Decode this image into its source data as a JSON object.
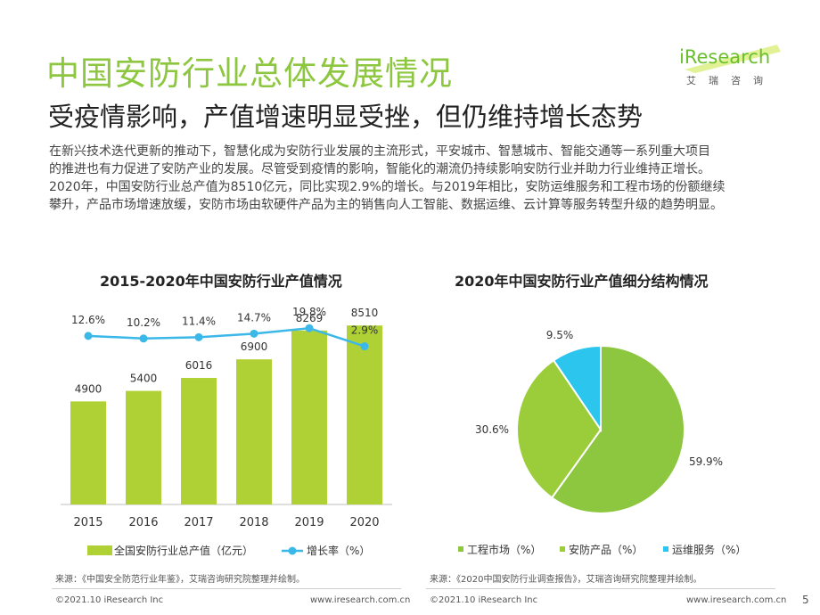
{
  "header": {
    "title": "中国安防行业总体发展情况",
    "subtitle": "受疫情影响，产值增速明显受挫，但仍维持增长态势",
    "logo_text": "iResearch",
    "logo_sub": "艾瑞咨询"
  },
  "body_lines": [
    "在新兴技术迭代更新的推动下，智慧化成为安防行业发展的主流形式，平安城市、智慧城市、智能交通等一系列重大项目",
    "的推进也有力促进了安防产业的发展。尽管受到疫情的影响，智能化的潮流仍持续影响安防行业并助力行业维持正增长。",
    "2020年，中国安防行业总产值为8510亿元，同比实现2.9%的增长。与2019年相比，安防运维服务和工程市场的份额继续",
    "攀升，产品市场增速放缓，安防市场由软硬件产品为主的销售向人工智能、数据运维、云计算等服务转型升级的趋势明显。"
  ],
  "colors": {
    "accent": "#8dc63f",
    "bar": "#afd136",
    "line": "#3bb8e8",
    "pie_engineering": "#8dc63f",
    "pie_product": "#9bcc3a",
    "pie_service": "#2cc5ee"
  },
  "chart_data": [
    {
      "type": "bar",
      "title": "2015-2020年中国安防行业产值情况",
      "categories": [
        "2015",
        "2016",
        "2017",
        "2018",
        "2019",
        "2020"
      ],
      "series": [
        {
          "name": "全国安防行业总产值（亿元）",
          "type": "bar",
          "values": [
            4900,
            5400,
            6016,
            6900,
            8269,
            8510
          ],
          "labels": [
            "4900",
            "5400",
            "6016",
            "6900",
            "8269",
            "8510"
          ]
        },
        {
          "name": "增长率（%）",
          "type": "line",
          "values": [
            12.6,
            10.2,
            11.4,
            14.7,
            19.8,
            2.9
          ],
          "labels": [
            "12.6%",
            "10.2%",
            "11.4%",
            "14.7%",
            "19.8%",
            "2.9%"
          ]
        }
      ],
      "ylim": [
        0,
        10000
      ],
      "legend": "bottom"
    },
    {
      "type": "pie",
      "title": "2020年中国安防行业产值细分结构情况",
      "categories": [
        "工程市场（%）",
        "安防产品（%）",
        "运维服务（%）"
      ],
      "values": [
        59.9,
        30.6,
        9.5
      ],
      "labels": [
        "59.9%",
        "30.6%",
        "9.5%"
      ],
      "legend": "bottom"
    }
  ],
  "sources": {
    "left": "来源：《中国安全防范行业年鉴》，艾瑞咨询研究院整理并绘制。",
    "right": "来源：《2020中国安防行业调查报告》，艾瑞咨询研究院整理并绘制。"
  },
  "footer": {
    "copyright": "©2021.10 iResearch Inc",
    "url": "www.iresearch.com.cn",
    "page": "5"
  }
}
